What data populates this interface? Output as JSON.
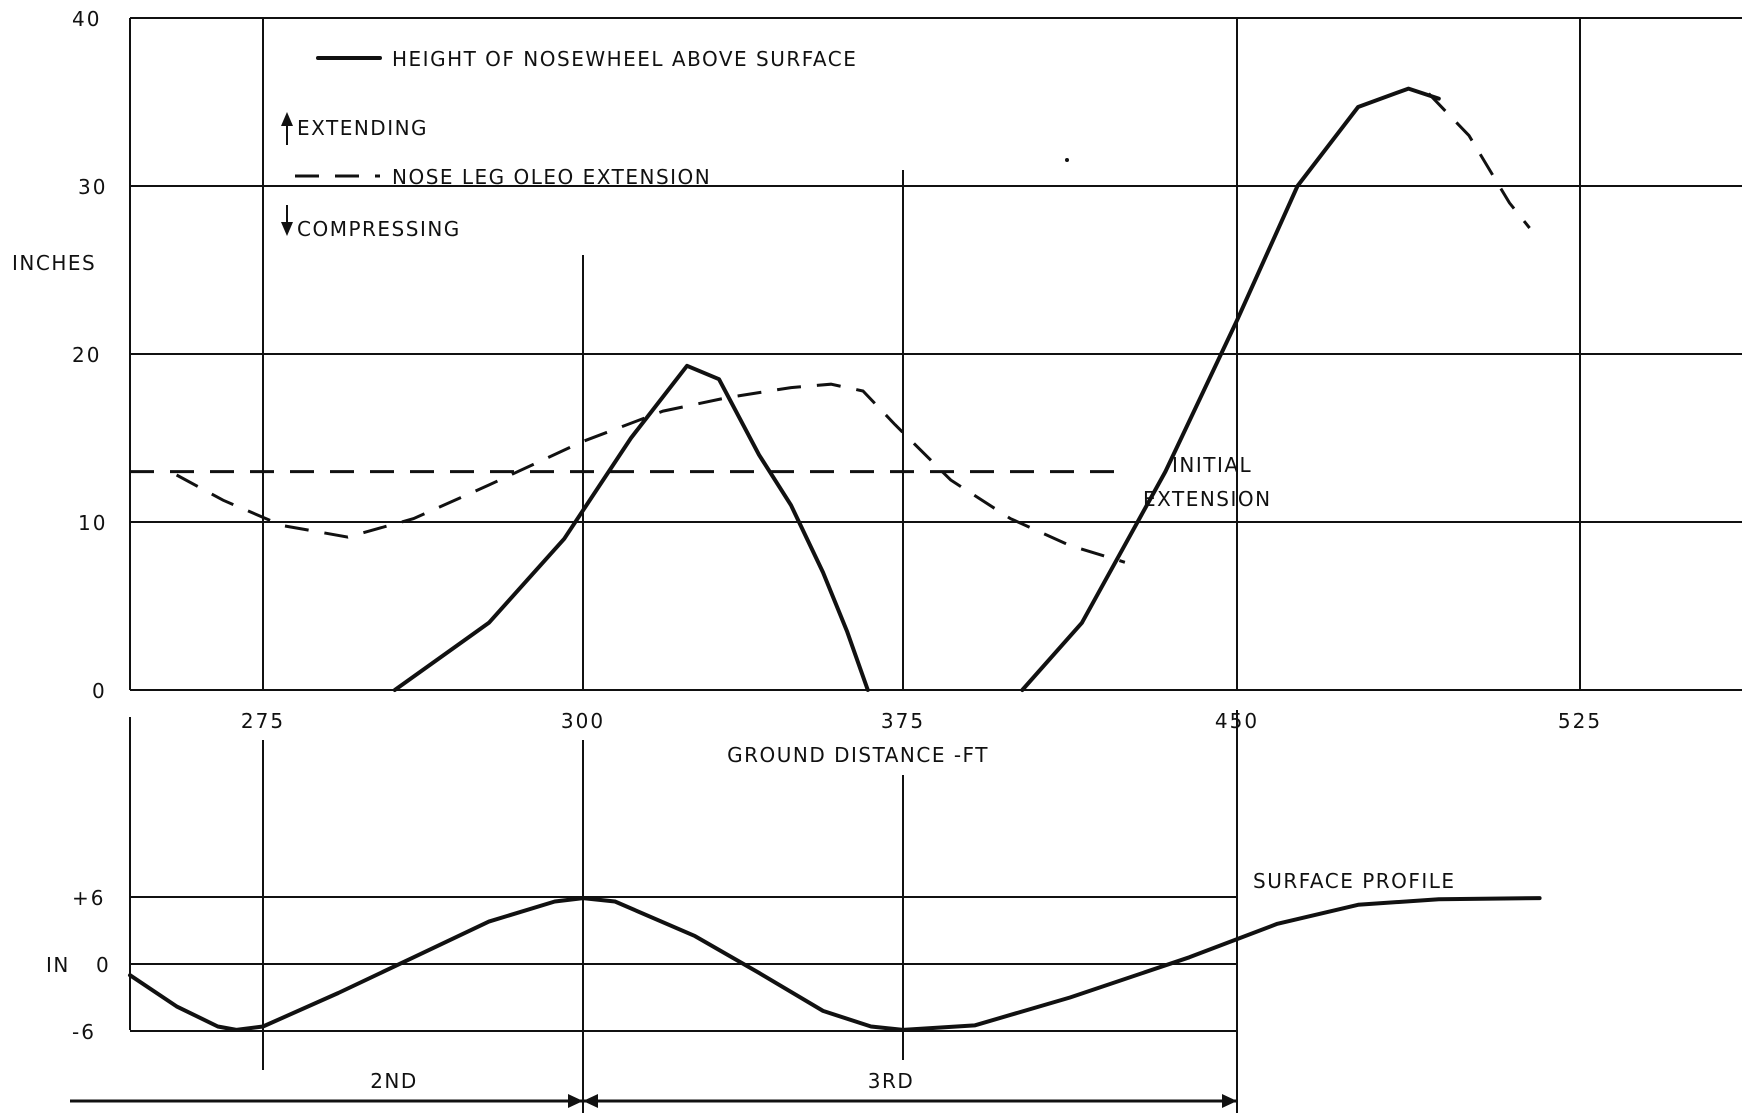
{
  "chart_data": [
    {
      "type": "line",
      "ylabel": "INCHES",
      "xlabel": "GROUND DISTANCE -FT",
      "x_ticks": [
        "275",
        "300",
        "375",
        "450",
        "525"
      ],
      "y_ticks": [
        "0",
        "10",
        "20",
        "30",
        "40"
      ],
      "ylim": [
        0,
        40
      ],
      "grid": true,
      "legend": {
        "solid_label": "HEIGHT OF NOSEWHEEL ABOVE SURFACE",
        "dashed_label": "NOSE LEG OLEO EXTENSION",
        "up_label": "EXTENDING",
        "down_label": "COMPRESSING"
      },
      "annotation": [
        "INITIAL",
        "EXTENSION"
      ],
      "series": [
        {
          "name": "HEIGHT OF NOSEWHEEL ABOVE SURFACE",
          "style": "solid",
          "points": [
            [
              1.7,
              0
            ],
            [
              2.2,
              4
            ],
            [
              2.6,
              9
            ],
            [
              3.0,
              15
            ],
            [
              3.35,
              19.3
            ],
            [
              3.55,
              18.5
            ],
            [
              3.8,
              14
            ],
            [
              4.0,
              11
            ],
            [
              4.2,
              7
            ],
            [
              4.35,
              3.5
            ],
            [
              4.48,
              0
            ]
          ]
        },
        {
          "name": "HEIGHT OF NOSEWHEEL ABOVE SURFACE",
          "style": "solid",
          "points": [
            [
              5.2,
              0
            ],
            [
              5.45,
              4
            ],
            [
              5.8,
              13
            ],
            [
              6.1,
              22
            ],
            [
              6.4,
              30
            ],
            [
              6.7,
              34.7
            ],
            [
              6.95,
              35.8
            ],
            [
              7.1,
              35.2
            ]
          ]
        },
        {
          "name": "NOSE LEG OLEO EXTENSION",
          "style": "dashed",
          "points": [
            [
              0.35,
              12.8
            ],
            [
              0.7,
              11.3
            ],
            [
              1.1,
              9.8
            ],
            [
              1.45,
              9.1
            ],
            [
              1.8,
              10.2
            ],
            [
              2.2,
              12.2
            ],
            [
              2.7,
              14.8
            ],
            [
              3.2,
              16.6
            ],
            [
              3.6,
              17.4
            ],
            [
              4.0,
              18.0
            ],
            [
              4.25,
              18.2
            ],
            [
              4.45,
              17.8
            ],
            [
              4.65,
              15.8
            ],
            [
              4.9,
              12.5
            ],
            [
              5.15,
              10.2
            ],
            [
              5.4,
              8.6
            ],
            [
              5.63,
              7.6
            ]
          ]
        },
        {
          "name": "NOSE LEG OLEO EXTENSION",
          "style": "dashed",
          "points": [
            [
              7.05,
              35.5
            ],
            [
              7.25,
              33.0
            ],
            [
              7.45,
              29.0
            ],
            [
              7.55,
              27.5
            ]
          ]
        },
        {
          "name": "INITIAL EXTENSION",
          "style": "dashed",
          "points": [
            [
              0,
              13
            ],
            [
              5.6,
              13
            ]
          ]
        }
      ]
    },
    {
      "type": "line",
      "title": "SURFACE PROFILE",
      "ylabel": "IN",
      "y_ticks": [
        "+6",
        "0",
        "-6"
      ],
      "ylim": [
        -6,
        6
      ],
      "span_labels": [
        "2ND",
        "3RD"
      ],
      "series": [
        {
          "name": "SURFACE PROFILE",
          "points": [
            [
              0.0,
              -1.0
            ],
            [
              0.35,
              -3.8
            ],
            [
              0.66,
              -5.6
            ],
            [
              0.8,
              -5.9
            ],
            [
              1.0,
              -5.6
            ],
            [
              1.4,
              -2.6
            ],
            [
              1.8,
              0.6
            ],
            [
              2.2,
              3.8
            ],
            [
              2.55,
              5.6
            ],
            [
              2.7,
              5.9
            ],
            [
              2.9,
              5.6
            ],
            [
              3.4,
              2.5
            ],
            [
              3.8,
              -0.8
            ],
            [
              4.2,
              -4.2
            ],
            [
              4.5,
              -5.6
            ],
            [
              4.7,
              -5.9
            ],
            [
              5.0,
              -5.5
            ],
            [
              5.4,
              -3.0
            ],
            [
              5.9,
              0.6
            ],
            [
              6.3,
              3.6
            ],
            [
              6.7,
              5.3
            ],
            [
              7.1,
              5.8
            ],
            [
              7.6,
              5.9
            ]
          ]
        }
      ]
    }
  ]
}
